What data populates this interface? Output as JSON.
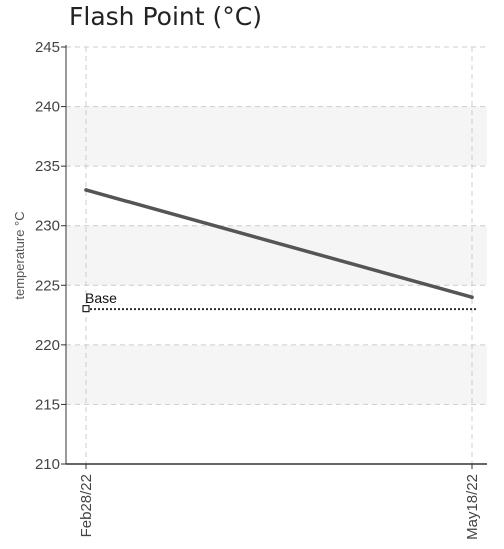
{
  "chart_data": {
    "type": "line",
    "title": "Flash Point (°C)",
    "ylabel": "temperature °C",
    "xlabel": "",
    "x": [
      "Feb28/22",
      "May18/22"
    ],
    "series": [
      {
        "values": [
          233,
          224
        ],
        "color": "#555555"
      }
    ],
    "reference_line": {
      "label": "Base",
      "value": 223,
      "color": "#333333",
      "style": "dotted"
    },
    "ylim": [
      210,
      245
    ],
    "yticks": [
      210,
      215,
      220,
      225,
      230,
      235,
      240,
      245
    ],
    "grid": true,
    "legend": "none",
    "band_color": "#f5f5f5"
  }
}
